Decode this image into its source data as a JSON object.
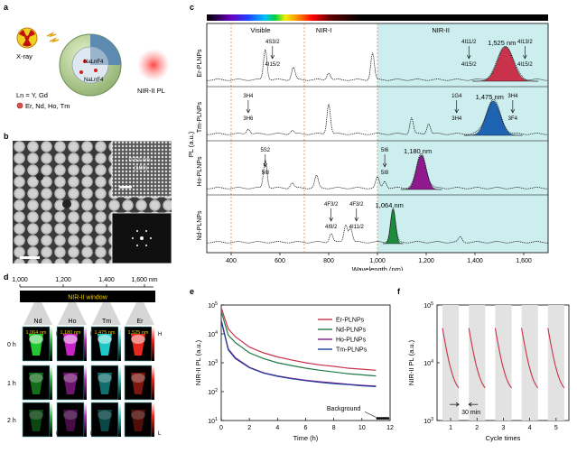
{
  "panels": {
    "a": {
      "letter": "a",
      "xray_label": "X-ray",
      "core_label": "NaLnF4",
      "shell_label": "NaLnF4",
      "ln_label": "Ln = Y, Gd",
      "dopant_label": "Er, Nd, Ho, Tm",
      "output_label": "NIR-II PL"
    },
    "b": {
      "letter": "b",
      "lattice_label": "0.52 nm",
      "plane_label": "(100)"
    },
    "c": {
      "letter": "c",
      "regions": [
        "Visible",
        "NIR-I",
        "NIR-II"
      ],
      "ylabel": "PL (a.u.)",
      "xlabel": "Wavelength (nm)",
      "xticks": [
        "400",
        "600",
        "800",
        "1,000",
        "1,200",
        "1,400",
        "1,600"
      ],
      "rows": [
        {
          "name": "Er-PLNPs",
          "peak_label": "1,525 nm",
          "color": "#c8324a",
          "levels": [
            "4S3/2",
            "4I15/2",
            "4I11/2",
            "4I15/2",
            "4I13/2",
            "4I15/2"
          ]
        },
        {
          "name": "Tm-PLNPs",
          "peak_label": "1,475 nm",
          "color": "#1f63b3",
          "levels": [
            "3H4",
            "3H6",
            "1G4",
            "3H4",
            "3H4",
            "3F4"
          ]
        },
        {
          "name": "Ho-PLNPs",
          "peak_label": "1,180 nm",
          "color": "#8e1a8e",
          "levels": [
            "5S2",
            "5I8",
            "5I6",
            "5I8"
          ]
        },
        {
          "name": "Nd-PLNPs",
          "peak_label": "1,064 nm",
          "color": "#1e8a3c",
          "levels": [
            "4F3/2",
            "4I9/2",
            "4F3/2",
            "4I11/2"
          ]
        }
      ]
    },
    "d": {
      "letter": "d",
      "axis_ticks": [
        "1,000",
        "1,200",
        "1,400",
        "1,600 nm"
      ],
      "window_label": "NIR-II window",
      "columns": [
        "Nd",
        "Ho",
        "Tm",
        "Er"
      ],
      "wavelengths": [
        "1,064 nm",
        "1,180 nm",
        "1,475 nm",
        "1,525 nm"
      ],
      "rows": [
        "0 h",
        "1 h",
        "2 h"
      ],
      "scale_high": "H",
      "scale_low": "L",
      "colors": [
        "#22c832",
        "#c823c8",
        "#1ec8c8",
        "#e6281e"
      ]
    },
    "e": {
      "letter": "e",
      "ylabel": "NIR-II PL (a.u.)",
      "xlabel": "Time (h)",
      "xticks": [
        "0",
        "2",
        "4",
        "6",
        "8",
        "10",
        "12"
      ],
      "yticks": [
        "10^1",
        "10^2",
        "10^3",
        "10^4",
        "10^5"
      ],
      "annotation": "Background",
      "legend": [
        "Er-PLNPs",
        "Nd-PLNPs",
        "Ho-PLNPs",
        "Tm-PLNPs"
      ],
      "colors": [
        "#c8324a",
        "#1e7a46",
        "#8e1a8e",
        "#1f3f99"
      ]
    },
    "f": {
      "letter": "f",
      "ylabel": "NIR-II PL (a.u.)",
      "xlabel": "Cycle times",
      "xticks": [
        "1",
        "2",
        "3",
        "4",
        "5"
      ],
      "yticks": [
        "10^3",
        "10^4",
        "10^5"
      ],
      "annotation": "30 min"
    }
  },
  "chart_data": [
    {
      "type": "line",
      "panel": "e",
      "xlabel": "Time (h)",
      "ylabel": "NIR-II PL (a.u.)",
      "xlim": [
        0,
        12
      ],
      "ylim": [
        10,
        100000
      ],
      "yscale": "log",
      "x": [
        0,
        0.5,
        1,
        2,
        3,
        4,
        5,
        6,
        7,
        8,
        9,
        10,
        11
      ],
      "series": [
        {
          "name": "Er-PLNPs",
          "values": [
            80000,
            15000,
            8000,
            3500,
            2200,
            1600,
            1250,
            1000,
            850,
            750,
            650,
            600,
            550
          ]
        },
        {
          "name": "Nd-PLNPs",
          "values": [
            60000,
            9000,
            5000,
            2200,
            1400,
            1000,
            800,
            650,
            550,
            480,
            420,
            380,
            350
          ]
        },
        {
          "name": "Ho-PLNPs",
          "values": [
            30000,
            3000,
            1500,
            700,
            450,
            350,
            290,
            250,
            220,
            200,
            180,
            165,
            155
          ]
        },
        {
          "name": "Tm-PLNPs",
          "values": [
            28000,
            2800,
            1400,
            680,
            440,
            340,
            280,
            240,
            210,
            190,
            175,
            160,
            150
          ]
        }
      ],
      "background": 12
    },
    {
      "type": "line",
      "panel": "f",
      "xlabel": "Cycle times",
      "ylabel": "NIR-II PL (a.u.)",
      "ylim": [
        1000,
        100000
      ],
      "yscale": "log",
      "cycles": [
        1,
        2,
        3,
        4,
        5
      ],
      "cycle_start": 40000,
      "cycle_end": 3000
    }
  ]
}
